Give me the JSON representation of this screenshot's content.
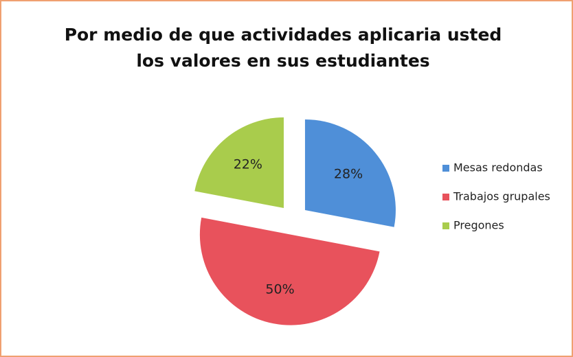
{
  "chart_data": {
    "type": "pie",
    "title": "Por medio de que actividades aplicaria usted los valores en sus estudiantes",
    "categories": [
      "Mesas redondas",
      "Trabajos grupales",
      "Pregones"
    ],
    "values": [
      28,
      50,
      22
    ],
    "value_labels": [
      "28%",
      "50%",
      "22%"
    ],
    "colors": [
      "#4f8fd8",
      "#e8525c",
      "#a9cc4c"
    ],
    "legend": "right"
  }
}
